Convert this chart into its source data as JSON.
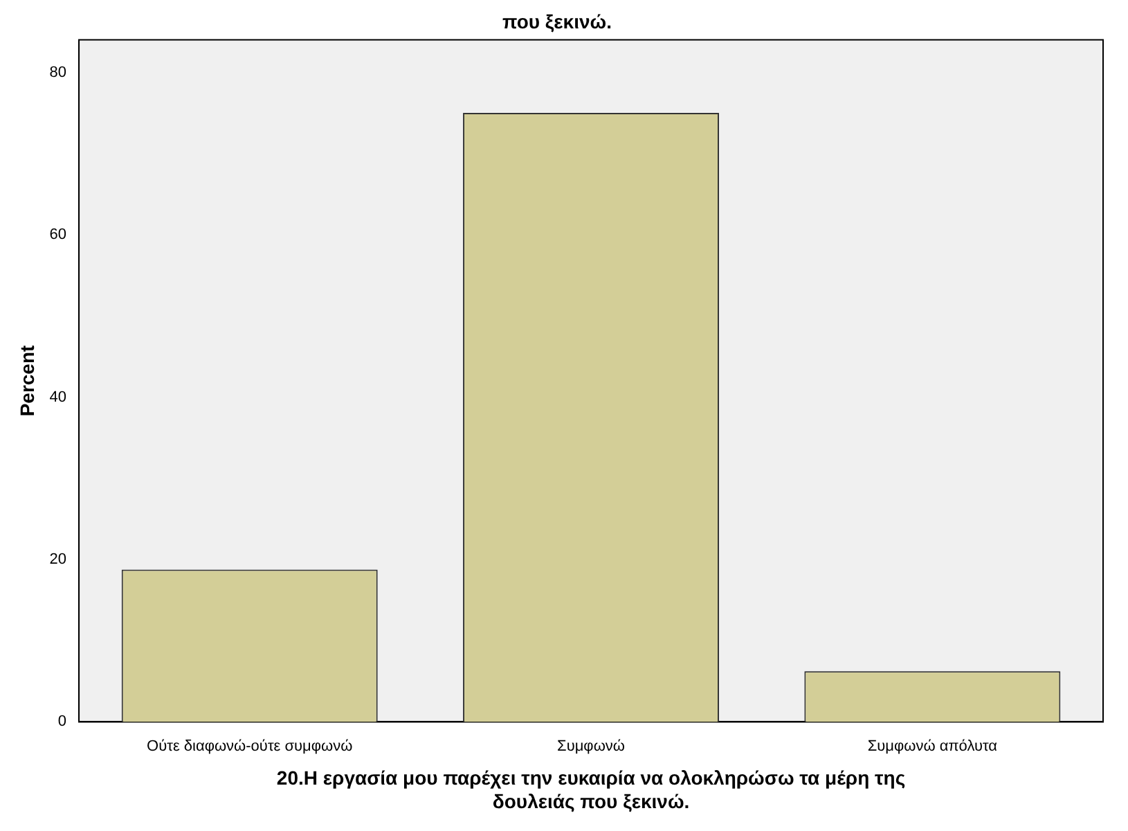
{
  "chart_data": {
    "type": "bar",
    "title": "που ξεκινώ.",
    "categories": [
      "Ούτε διαφωνώ-ούτε συμφωνώ",
      "Συμφωνώ",
      "Συμφωνώ απόλυτα"
    ],
    "values": [
      18.75,
      75,
      6.25
    ],
    "color": "#d3ce97",
    "xlabel": "20.Η εργασία μου παρέχει την ευκαιρία να ολοκληρώσω τα μέρη της δουλειάς που ξεκινώ.",
    "ylabel": "Percent",
    "ylim": [
      0,
      84
    ],
    "yticks": [
      0,
      20,
      40,
      60,
      80
    ],
    "grid": false,
    "legend": false
  }
}
